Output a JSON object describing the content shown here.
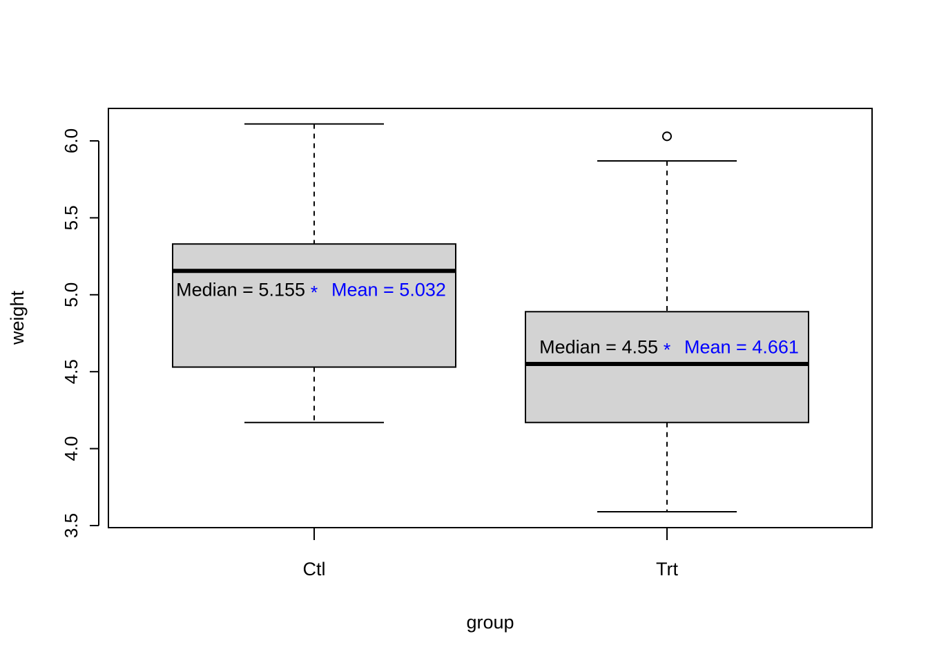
{
  "chart_data": {
    "type": "box",
    "xlabel": "group",
    "ylabel": "weight",
    "ylim": [
      3.5,
      6.2
    ],
    "yticks": [
      "3.5",
      "4.0",
      "4.5",
      "5.0",
      "5.5",
      "6.0"
    ],
    "categories": [
      "Ctl",
      "Trt"
    ],
    "boxes": [
      {
        "q1": 4.53,
        "median": 5.155,
        "q3": 5.33,
        "whisker_low": 4.17,
        "whisker_high": 6.11,
        "mean": 5.032,
        "outliers": []
      },
      {
        "q1": 4.17,
        "median": 4.55,
        "q3": 4.89,
        "whisker_low": 3.59,
        "whisker_high": 5.87,
        "mean": 4.661,
        "outliers": [
          6.03
        ]
      }
    ],
    "annotations": [
      {
        "median_text": "Median =  5.155",
        "mean_marker": "*",
        "mean_text": "Mean =  5.032"
      },
      {
        "median_text": "Median =  4.55",
        "mean_marker": "*",
        "mean_text": "Mean =  4.661"
      }
    ],
    "colors": {
      "box_fill": "#d3d3d3",
      "mean_text": "#0000ff",
      "median_text": "#000000"
    }
  }
}
